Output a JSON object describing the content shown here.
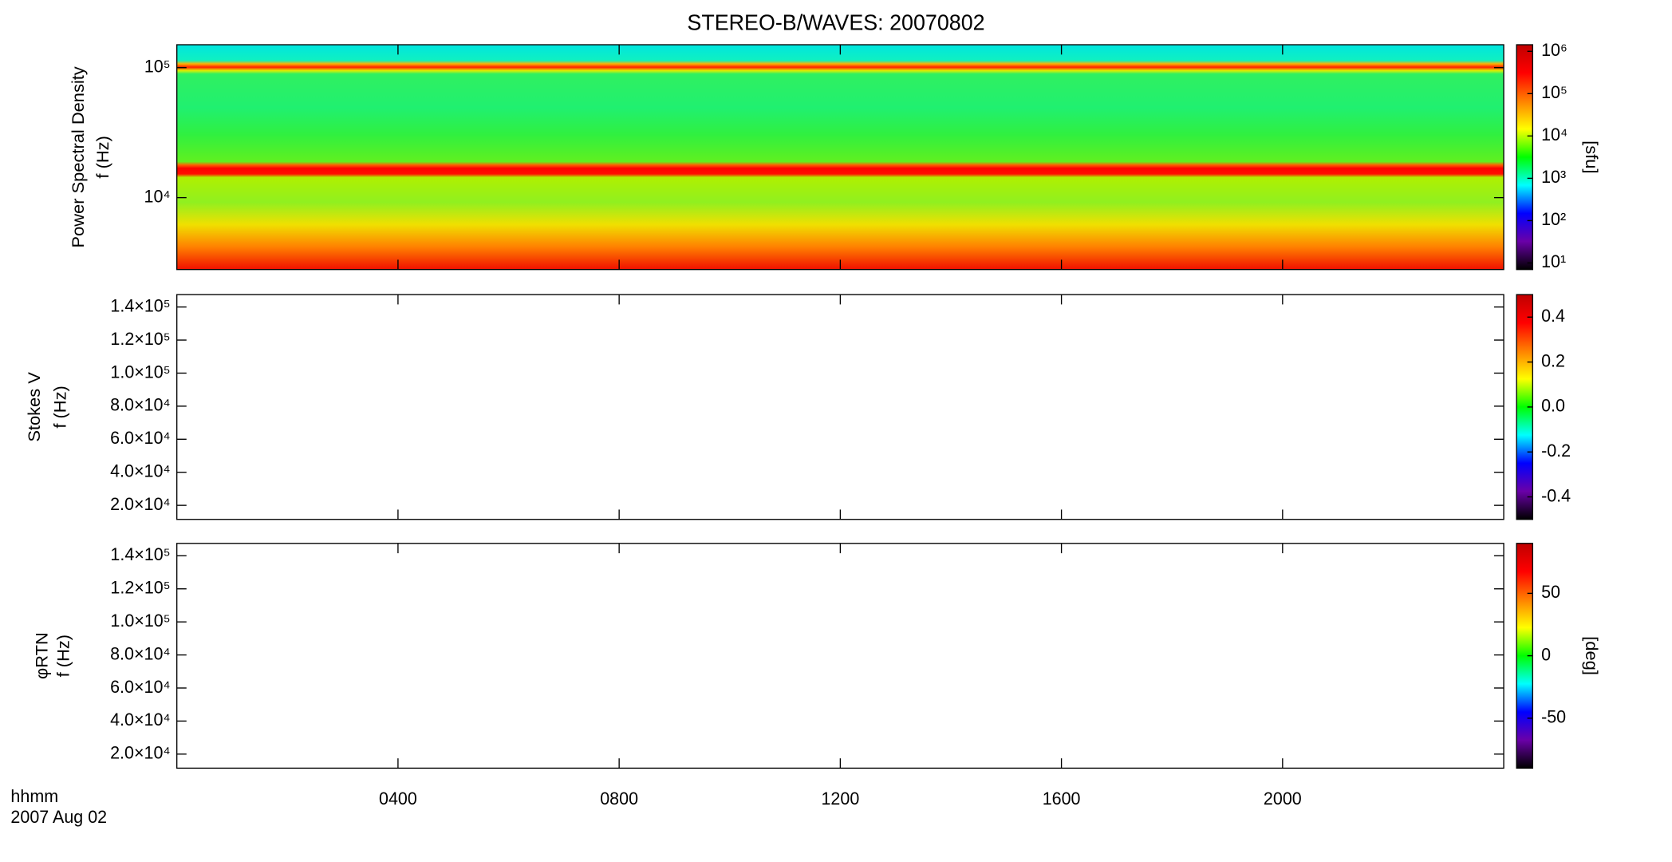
{
  "chart_data": [
    {
      "type": "heatmap",
      "title": "STEREO-B/WAVES: 20070802",
      "ylabel": [
        "Power Spectral Density",
        "f (Hz)"
      ],
      "ylog": true,
      "ylim": [
        2800,
        150000
      ],
      "yticks": [
        {
          "value": 10000,
          "label": "10⁴"
        },
        {
          "value": 100000,
          "label": "10⁵"
        }
      ],
      "colorbar": {
        "log": true,
        "lim": [
          7,
          1430000
        ],
        "label": "[sfu]",
        "ticks": [
          {
            "value": 10,
            "label": "10¹"
          },
          {
            "value": 100,
            "label": "10²"
          },
          {
            "value": 1000,
            "label": "10³"
          },
          {
            "value": 10000,
            "label": "10⁴"
          },
          {
            "value": 100000,
            "label": "10⁵"
          },
          {
            "value": 1000000,
            "label": "10⁶"
          }
        ]
      }
    },
    {
      "type": "heatmap",
      "ylabel": [
        "Stokes V",
        "f (Hz)"
      ],
      "ylog": false,
      "ylim": [
        11500,
        147500
      ],
      "yticks": [
        {
          "value": 20000,
          "label": "2.0×10⁴"
        },
        {
          "value": 40000,
          "label": "4.0×10⁴"
        },
        {
          "value": 60000,
          "label": "6.0×10⁴"
        },
        {
          "value": 80000,
          "label": "8.0×10⁴"
        },
        {
          "value": 100000,
          "label": "1.0×10⁵"
        },
        {
          "value": 120000,
          "label": "1.2×10⁵"
        },
        {
          "value": 140000,
          "label": "1.4×10⁵"
        }
      ],
      "colorbar": {
        "log": false,
        "lim": [
          -0.5,
          0.5
        ],
        "ticks": [
          -0.4,
          -0.2,
          {
            "value": 0,
            "label": "0.0"
          },
          0.2,
          0.4
        ]
      }
    },
    {
      "type": "heatmap",
      "ylabel": [
        "φRTN",
        "f (Hz)"
      ],
      "ylog": false,
      "ylim": [
        11500,
        147500
      ],
      "yticks": [
        {
          "value": 20000,
          "label": "2.0×10⁴"
        },
        {
          "value": 40000,
          "label": "4.0×10⁴"
        },
        {
          "value": 60000,
          "label": "6.0×10⁴"
        },
        {
          "value": 80000,
          "label": "8.0×10⁴"
        },
        {
          "value": 100000,
          "label": "1.0×10⁵"
        },
        {
          "value": 120000,
          "label": "1.2×10⁵"
        },
        {
          "value": 140000,
          "label": "1.4×10⁵"
        }
      ],
      "colorbar": {
        "log": false,
        "lim": [
          -90,
          90
        ],
        "label": "[deg]",
        "ticks": [
          -50,
          0,
          50
        ]
      },
      "xlabel": "hhmm",
      "date_label": "2007 Aug 02",
      "xlim": [
        0,
        24
      ],
      "xticks": [
        {
          "value": 4,
          "label": "0400"
        },
        {
          "value": 8,
          "label": "0800"
        },
        {
          "value": 12,
          "label": "1200"
        },
        {
          "value": 16,
          "label": "1600"
        },
        {
          "value": 20,
          "label": "2000"
        }
      ],
      "colormap": [
        "#000000",
        "#6a00a8",
        "#0000ff",
        "#00ffff",
        "#00ff00",
        "#ffff00",
        "#ff8000",
        "#ff0000",
        "#c00000"
      ]
    }
  ]
}
